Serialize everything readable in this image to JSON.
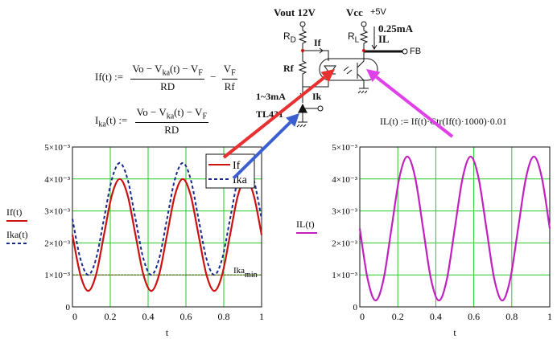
{
  "formulas": {
    "if_lhs": "If(t) :=",
    "if_num_a": "Vo − V",
    "if_num_sub1": "ka",
    "if_num_b": "(t) − V",
    "if_num_sub2": "F",
    "if_den": "RD",
    "minus": "−",
    "if_num2": "V",
    "if_num2_sub": "F",
    "if_den2": "Rf",
    "ika_lhs_a": "I",
    "ika_lhs_sub": "ka",
    "ika_lhs_b": "(t) :=",
    "ika_den": "RD",
    "il": "IL(t) := If(t)·Ctr(If(t)·1000)·0.01"
  },
  "circuit": {
    "vout": "Vout 12V",
    "vcc": "Vcc",
    "vcc_val": "+5V",
    "rd": "R",
    "rd_sub": "D",
    "rf": "Rf",
    "rl": "R",
    "rl_sub": "L",
    "if": "If",
    "ik": "Ik",
    "il_current": "0.25mA",
    "il": "IL",
    "fb": "FB",
    "range": "1~3mA",
    "tl431": "TL431"
  },
  "arrows": {
    "if_color": "#e83030",
    "ika_color": "#3a5fd0",
    "il_color": "#e040e8"
  },
  "chart_data": [
    {
      "type": "line",
      "xlabel": "t",
      "xlim": [
        0,
        1
      ],
      "ylim": [
        0,
        0.005
      ],
      "x_ticks": [
        "0",
        "0.2",
        "0.4",
        "0.6",
        "0.8",
        "1"
      ],
      "y_ticks": [
        "0",
        "1×10⁻³",
        "2×10⁻³",
        "3×10⁻³",
        "4×10⁻³",
        "5×10⁻³"
      ],
      "grid": true,
      "grid_color": "#22cc22",
      "legend": {
        "placement": "top-right",
        "entries": [
          "If",
          "Ika"
        ]
      },
      "ylabels": [
        "If(t)",
        "Ika(t)"
      ],
      "x": [
        0,
        0.04167,
        0.08333,
        0.125,
        0.16667,
        0.20833,
        0.25,
        0.29167,
        0.33333,
        0.375,
        0.41667,
        0.45833,
        0.5,
        0.54167,
        0.58333,
        0.625,
        0.66667,
        0.70833,
        0.75,
        0.79167,
        0.83333,
        0.875,
        0.91667,
        0.95833,
        1
      ],
      "series": [
        {
          "name": "If",
          "color": "#cc1111",
          "style": "solid",
          "values": [
            0.00225,
            0.00101,
            0.0005,
            0.00101,
            0.00225,
            0.00349,
            0.004,
            0.00349,
            0.00225,
            0.00101,
            0.0005,
            0.00101,
            0.00225,
            0.00349,
            0.004,
            0.00349,
            0.00225,
            0.00101,
            0.0005,
            0.00101,
            0.00225,
            0.00349,
            0.004,
            0.00349,
            0.00225
          ]
        },
        {
          "name": "Ika",
          "color": "#1a2a8a",
          "style": "dashed",
          "values": [
            0.00275,
            0.00151,
            0.001,
            0.00151,
            0.00275,
            0.00399,
            0.0045,
            0.00399,
            0.00275,
            0.00151,
            0.001,
            0.00151,
            0.00275,
            0.00399,
            0.0045,
            0.00399,
            0.00275,
            0.00151,
            0.001,
            0.00151,
            0.00275,
            0.00399,
            0.0045,
            0.00399,
            0.00275
          ]
        }
      ],
      "hline": {
        "label": "Ika",
        "label_sub": "min",
        "value": 0.001,
        "color": "#6a4a20"
      }
    },
    {
      "type": "line",
      "xlabel": "t",
      "xlim": [
        0,
        1
      ],
      "ylim": [
        0,
        0.005
      ],
      "x_ticks": [
        "0",
        "0.2",
        "0.4",
        "0.6",
        "0.8",
        "1"
      ],
      "y_ticks": [
        "0",
        "1×10⁻³",
        "2×10⁻³",
        "3×10⁻³",
        "4×10⁻³",
        "5×10⁻³"
      ],
      "grid": true,
      "grid_color": "#22cc22",
      "ylabels": [
        "IL(t)"
      ],
      "x": [
        0,
        0.04167,
        0.08333,
        0.125,
        0.16667,
        0.20833,
        0.25,
        0.29167,
        0.33333,
        0.375,
        0.41667,
        0.45833,
        0.5,
        0.54167,
        0.58333,
        0.625,
        0.66667,
        0.70833,
        0.75,
        0.79167,
        0.83333,
        0.875,
        0.91667,
        0.95833,
        1
      ],
      "series": [
        {
          "name": "IL",
          "color": "#c020c0",
          "style": "solid",
          "values": [
            0.00245,
            0.00086,
            0.0002,
            0.00086,
            0.00245,
            0.00404,
            0.0047,
            0.00404,
            0.00245,
            0.00086,
            0.0002,
            0.00086,
            0.00245,
            0.00404,
            0.0047,
            0.00404,
            0.00245,
            0.00086,
            0.0002,
            0.00086,
            0.00245,
            0.00404,
            0.0047,
            0.00404,
            0.00245
          ]
        }
      ]
    }
  ]
}
